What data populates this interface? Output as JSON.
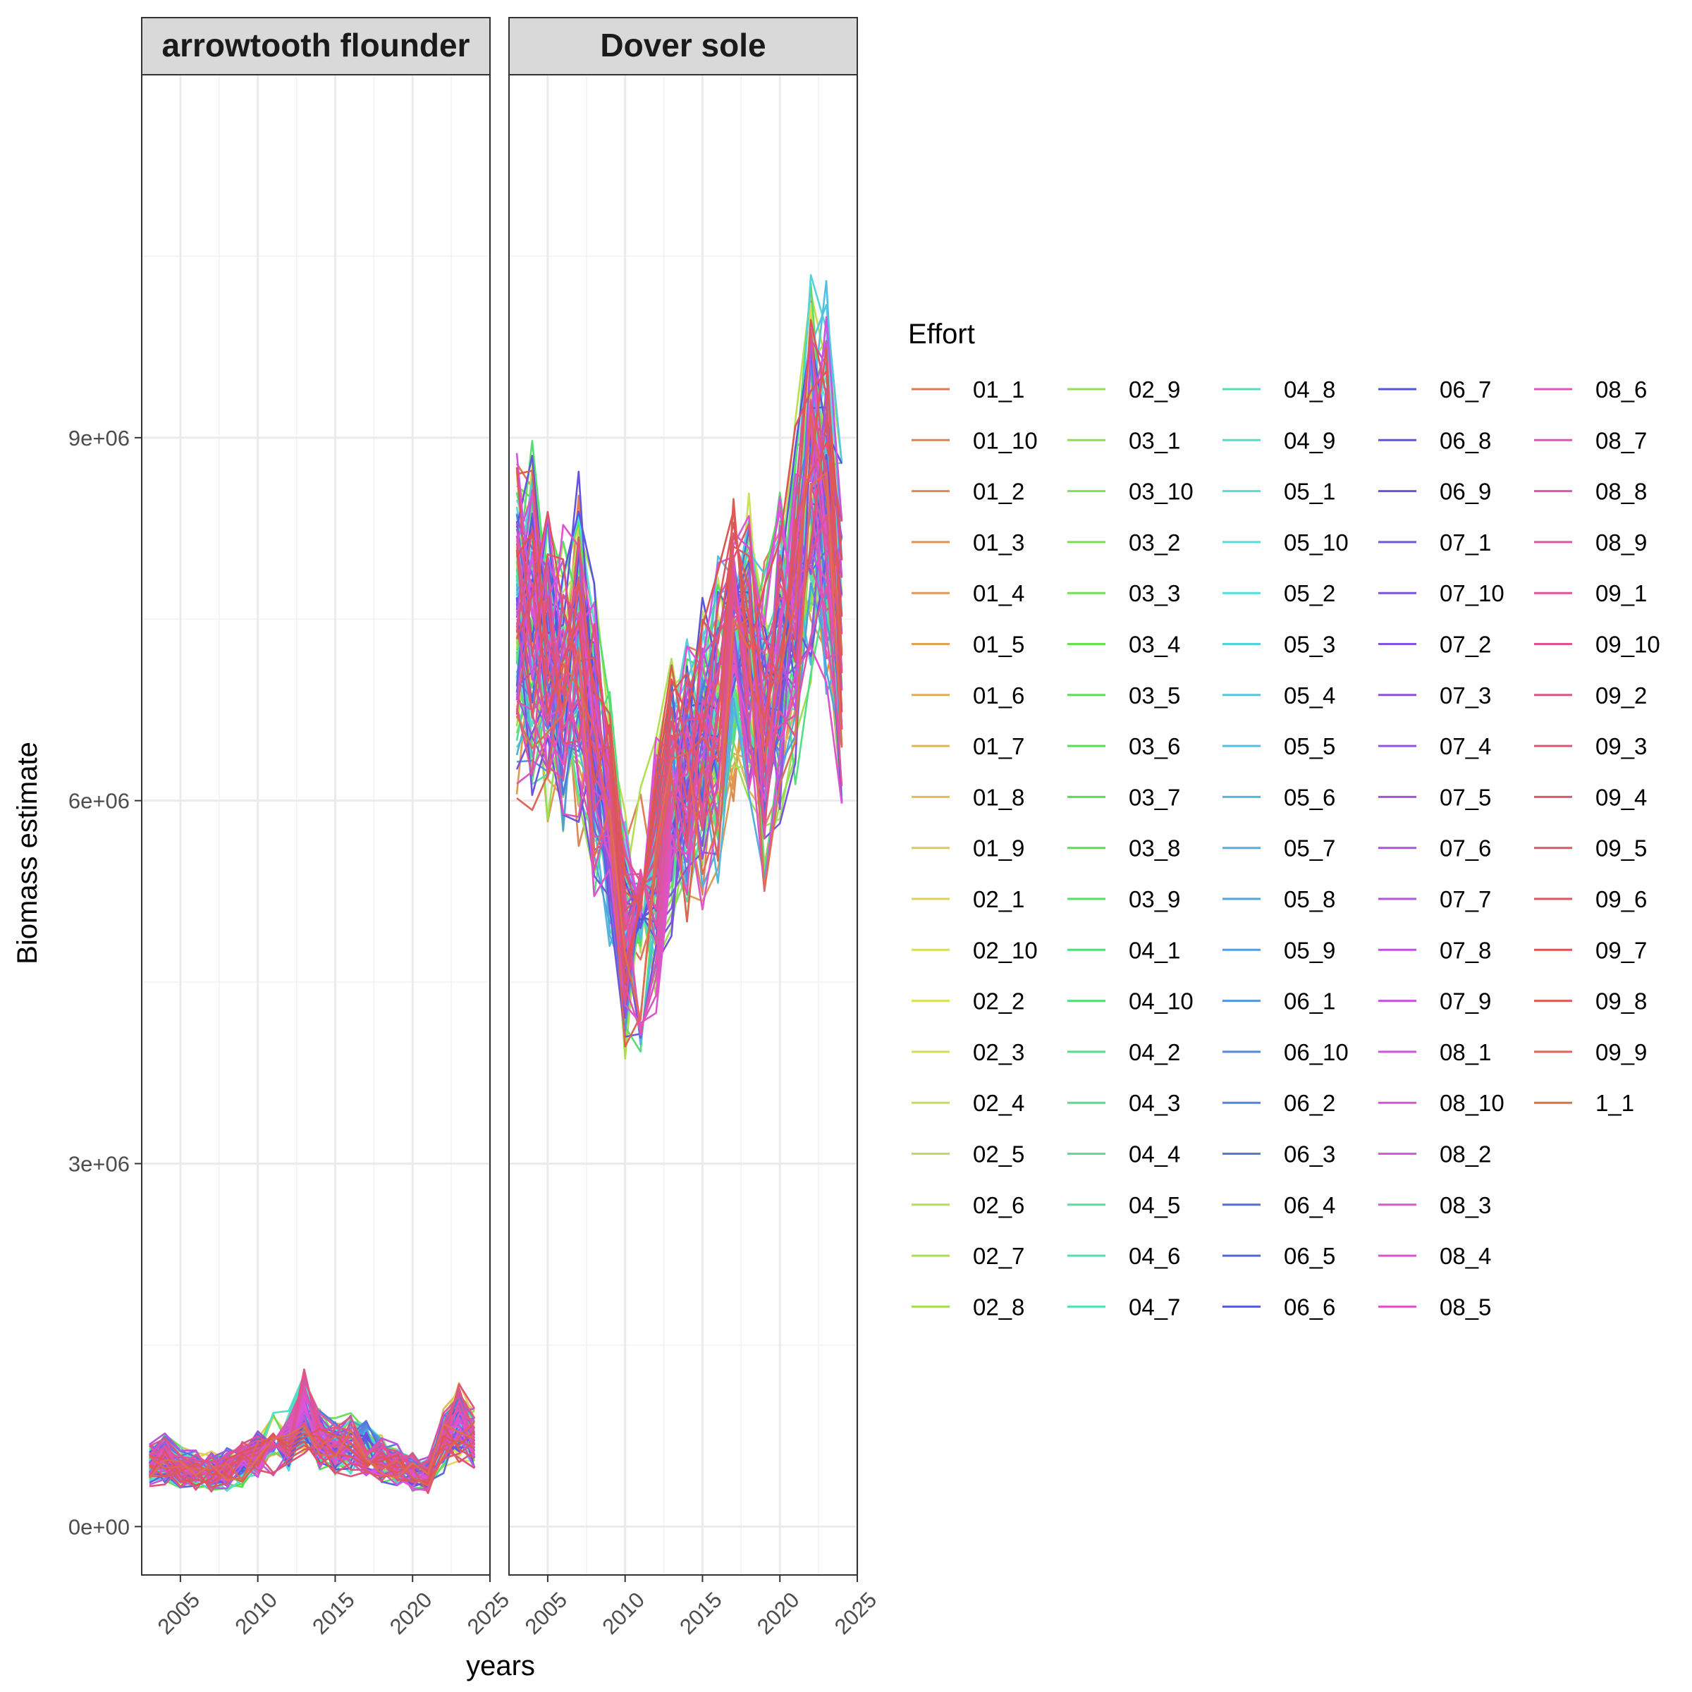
{
  "chart_data": {
    "type": "line",
    "xlabel": "years",
    "ylabel": "Biomass estimate",
    "xlim": [
      2002.5,
      2025
    ],
    "ylim": [
      -400000,
      12000000
    ],
    "x_ticks": [
      2005,
      2010,
      2015,
      2020,
      2025
    ],
    "x_tick_labels": [
      "2005",
      "2010",
      "2015",
      "2020",
      "2025"
    ],
    "y_ticks": [
      0,
      3000000,
      6000000,
      9000000
    ],
    "y_tick_labels": [
      "0e+00",
      "3e+06",
      "6e+06",
      "9e+06"
    ],
    "grid": true,
    "x": [
      2003,
      2004,
      2005,
      2006,
      2007,
      2008,
      2009,
      2010,
      2011,
      2012,
      2013,
      2014,
      2015,
      2016,
      2017,
      2018,
      2019,
      2020,
      2021,
      2022,
      2023,
      2024
    ],
    "panels": [
      {
        "name": "arrowtooth flounder",
        "mean": [
          520000,
          560000,
          480000,
          470000,
          450000,
          470000,
          520000,
          600000,
          680000,
          700000,
          950000,
          720000,
          650000,
          680000,
          640000,
          550000,
          500000,
          450000,
          420000,
          720000,
          850000,
          720000
        ],
        "spread": 0.25
      },
      {
        "name": "Dover sole",
        "mean": [
          7500000,
          7400000,
          7200000,
          6900000,
          7200000,
          6500000,
          5800000,
          4900000,
          5000000,
          5400000,
          6000000,
          6200000,
          6400000,
          6700000,
          7100000,
          7200000,
          6600000,
          7100000,
          7600000,
          8700000,
          8500000,
          7300000
        ],
        "spread": 0.14
      }
    ],
    "legend": {
      "title": "Effort",
      "placement": "right",
      "entries": [
        "01_1",
        "01_10",
        "01_2",
        "01_3",
        "01_4",
        "01_5",
        "01_6",
        "01_7",
        "01_8",
        "01_9",
        "02_1",
        "02_10",
        "02_2",
        "02_3",
        "02_4",
        "02_5",
        "02_6",
        "02_7",
        "02_8",
        "02_9",
        "03_1",
        "03_10",
        "03_2",
        "03_3",
        "03_4",
        "03_5",
        "03_6",
        "03_7",
        "03_8",
        "03_9",
        "04_1",
        "04_10",
        "04_2",
        "04_3",
        "04_4",
        "04_5",
        "04_6",
        "04_7",
        "04_8",
        "04_9",
        "05_1",
        "05_10",
        "05_2",
        "05_3",
        "05_4",
        "05_5",
        "05_6",
        "05_7",
        "05_8",
        "05_9",
        "06_1",
        "06_10",
        "06_2",
        "06_3",
        "06_4",
        "06_5",
        "06_6",
        "06_7",
        "06_8",
        "06_9",
        "07_1",
        "07_10",
        "07_2",
        "07_3",
        "07_4",
        "07_5",
        "07_6",
        "07_7",
        "07_8",
        "07_9",
        "08_1",
        "08_10",
        "08_2",
        "08_3",
        "08_4",
        "08_5",
        "08_6",
        "08_7",
        "08_8",
        "08_9",
        "09_1",
        "09_10",
        "09_2",
        "09_3",
        "09_4",
        "09_5",
        "09_6",
        "09_7",
        "09_8",
        "09_9",
        "1_1"
      ]
    }
  }
}
